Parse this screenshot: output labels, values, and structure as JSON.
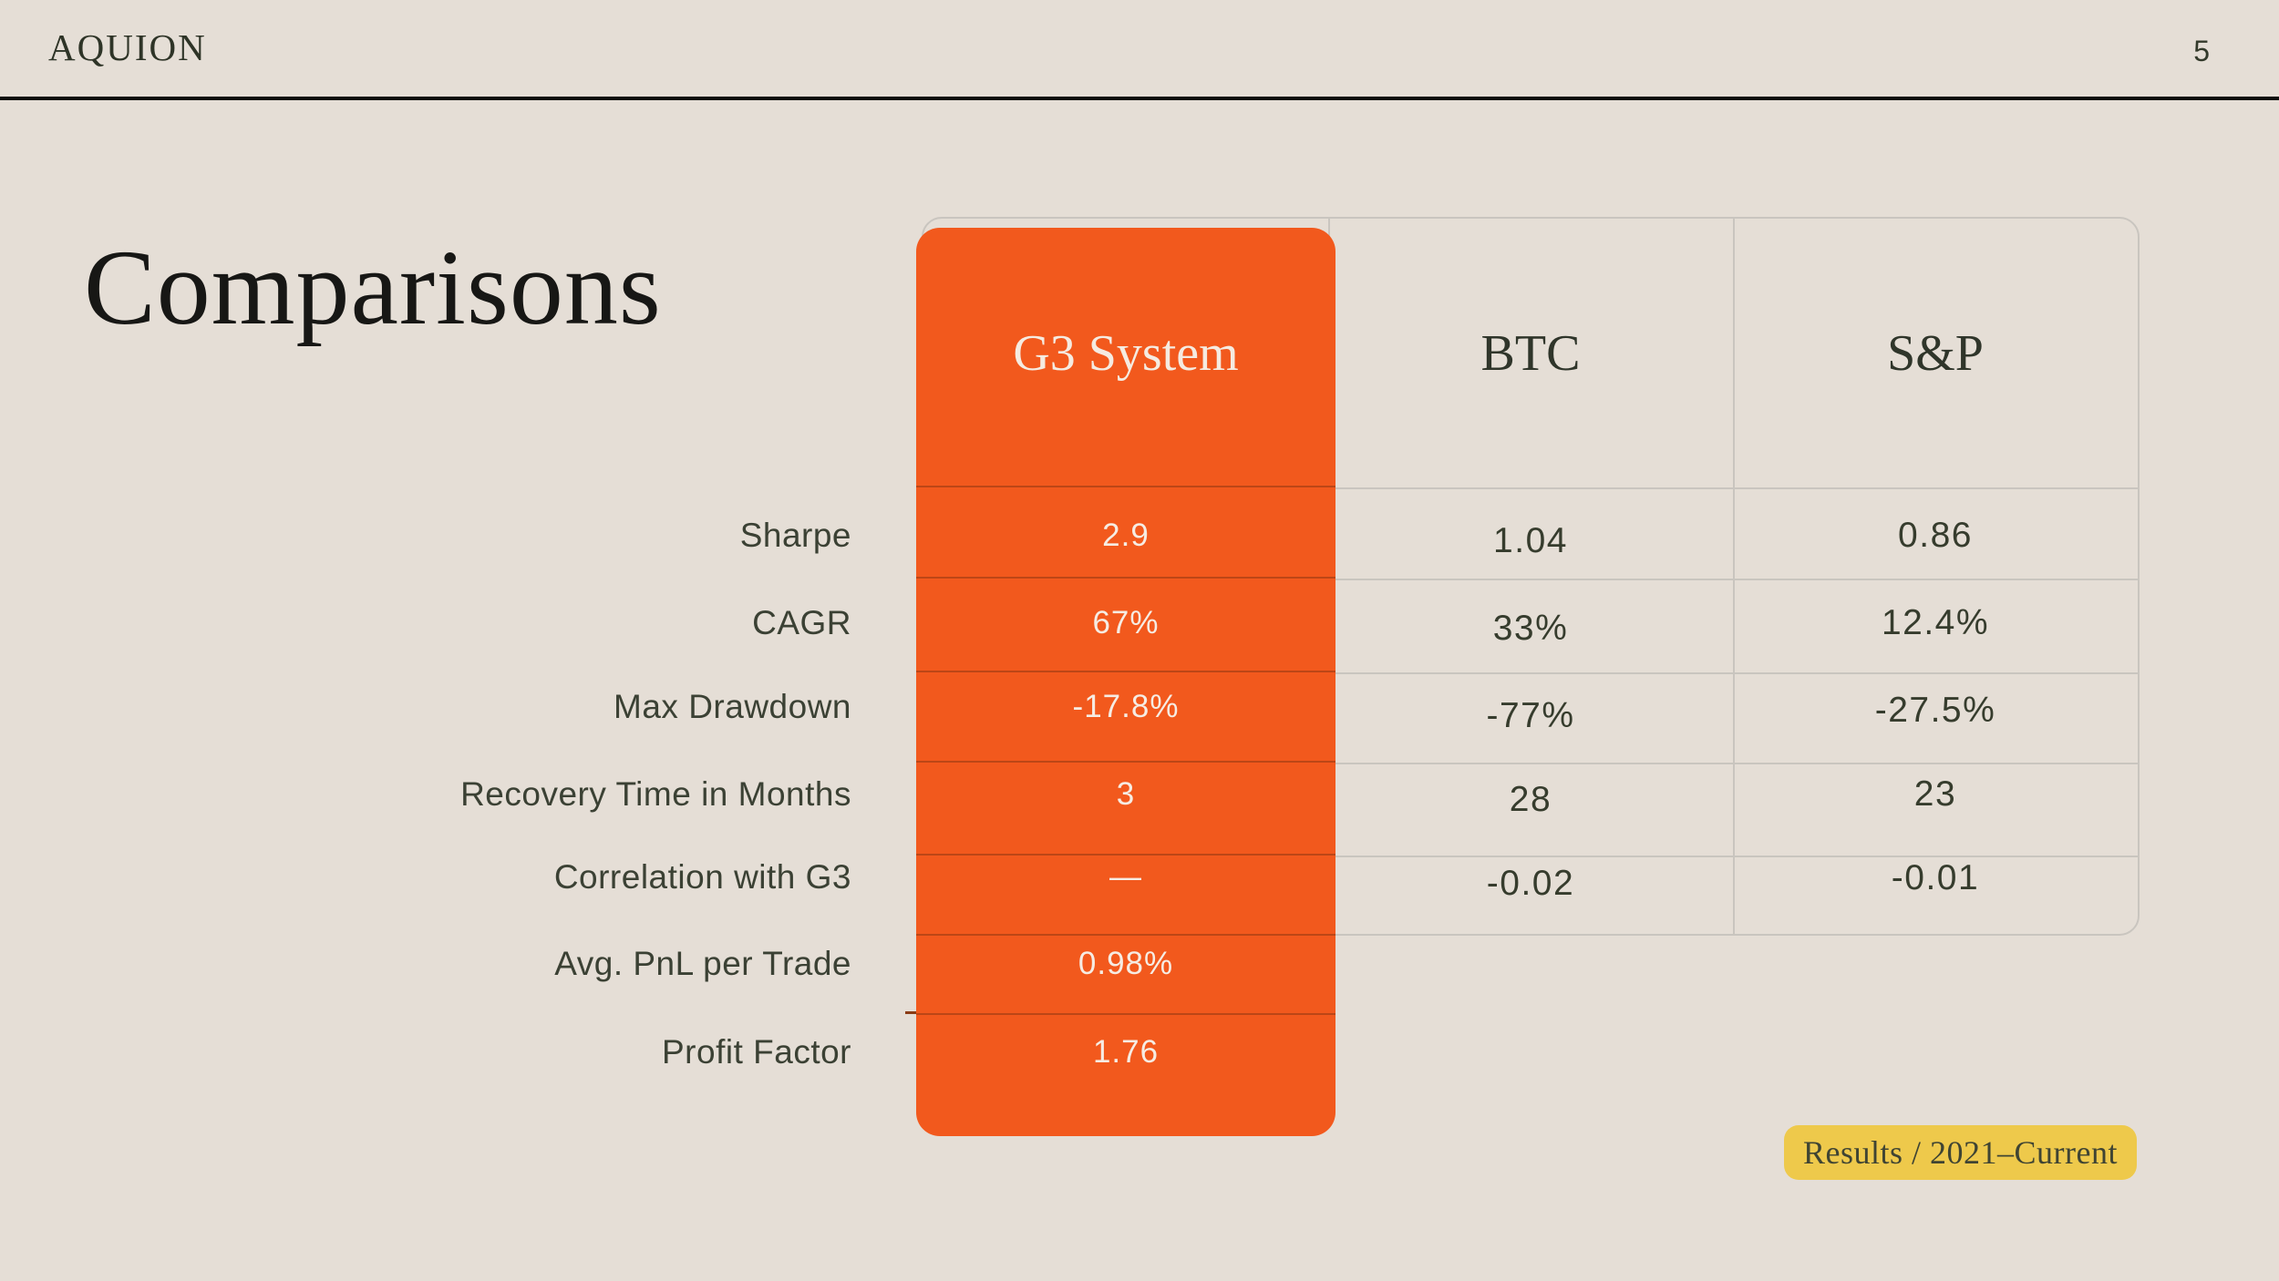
{
  "header": {
    "brand": "AQUION",
    "page_number": "5"
  },
  "title": "Comparisons",
  "table": {
    "columns": [
      "G3 System",
      "BTC",
      "S&P"
    ],
    "rows": [
      {
        "label": "Sharpe",
        "g3": "2.9",
        "btc": "1.04",
        "sp": "0.86"
      },
      {
        "label": "CAGR",
        "g3": "67%",
        "btc": "33%",
        "sp": "12.4%"
      },
      {
        "label": "Max Drawdown",
        "g3": "-17.8%",
        "btc": "-77%",
        "sp": "-27.5%"
      },
      {
        "label": "Recovery Time in Months",
        "g3": "3",
        "btc": "28",
        "sp": "23"
      },
      {
        "label": "Correlation with G3",
        "g3": "—",
        "btc": "-0.02",
        "sp": "-0.01"
      },
      {
        "label": "Avg. PnL per Trade",
        "g3": "0.98%",
        "btc": "",
        "sp": ""
      },
      {
        "label": "Profit Factor",
        "g3": "1.76",
        "btc": "",
        "sp": ""
      }
    ]
  },
  "badge": {
    "label": "Results / 2021–Current"
  },
  "colors": {
    "background": "#E5DED6",
    "accent_orange": "#F2591D",
    "badge_yellow": "#EEC94B",
    "ink": "#31372B",
    "grid_gray": "#C9C5BF"
  }
}
